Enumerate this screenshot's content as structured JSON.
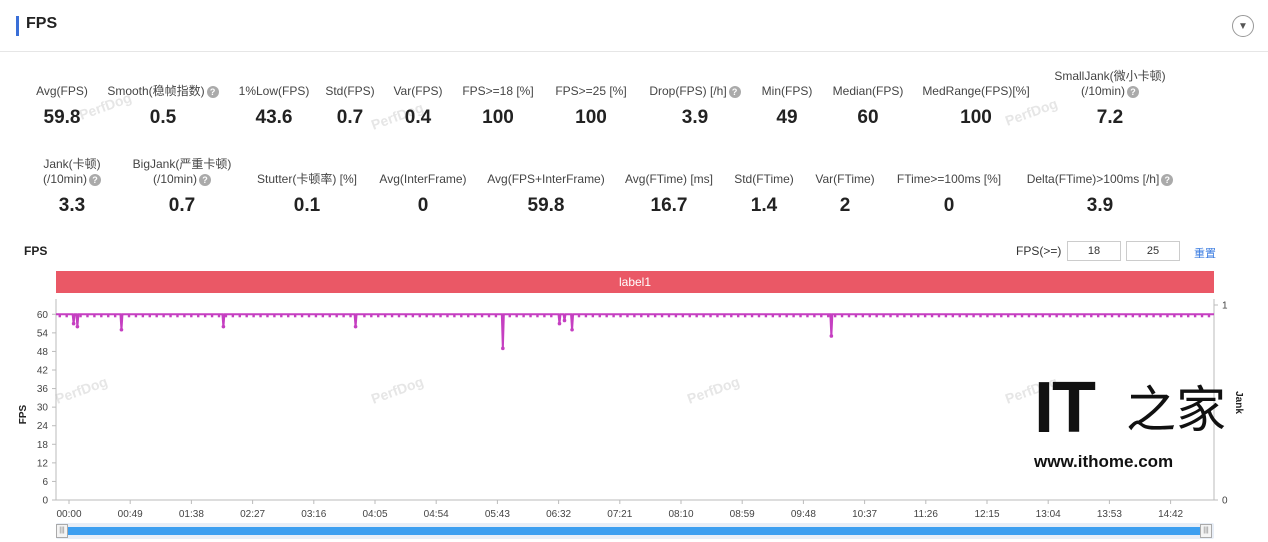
{
  "header": {
    "title": "FPS"
  },
  "stats_row1": [
    {
      "label": "Avg(FPS)",
      "value": "59.8",
      "help": false
    },
    {
      "label": "Smooth(稳帧指数)",
      "value": "0.5",
      "help": true
    },
    {
      "label": "1%Low(FPS)",
      "value": "43.6",
      "help": false
    },
    {
      "label": "Std(FPS)",
      "value": "0.7",
      "help": false
    },
    {
      "label": "Var(FPS)",
      "value": "0.4",
      "help": false
    },
    {
      "label": "FPS>=18 [%]",
      "value": "100",
      "help": false
    },
    {
      "label": "FPS>=25 [%]",
      "value": "100",
      "help": false
    },
    {
      "label": "Drop(FPS) [/h]",
      "value": "3.9",
      "help": true
    },
    {
      "label": "Min(FPS)",
      "value": "49",
      "help": false
    },
    {
      "label": "Median(FPS)",
      "value": "60",
      "help": false
    },
    {
      "label": "MedRange(FPS)[%]",
      "value": "100",
      "help": false
    },
    {
      "label": "SmallJank(微小卡顿)",
      "label2": "(/10min)",
      "value": "7.2",
      "help": true
    }
  ],
  "stats_row2": [
    {
      "label": "Jank(卡顿)",
      "label2": "(/10min)",
      "value": "3.3",
      "help": true
    },
    {
      "label": "BigJank(严重卡顿)",
      "label2": "(/10min)",
      "value": "0.7",
      "help": true
    },
    {
      "label": "Stutter(卡顿率) [%]",
      "value": "0.1",
      "help": false
    },
    {
      "label": "Avg(InterFrame)",
      "value": "0",
      "help": false
    },
    {
      "label": "Avg(FPS+InterFrame)",
      "value": "59.8",
      "help": false
    },
    {
      "label": "Avg(FTime) [ms]",
      "value": "16.7",
      "help": false
    },
    {
      "label": "Std(FTime)",
      "value": "1.4",
      "help": false
    },
    {
      "label": "Var(FTime)",
      "value": "2",
      "help": false
    },
    {
      "label": "FTime>=100ms [%]",
      "value": "0",
      "help": false
    },
    {
      "label": "Delta(FTime)>100ms [/h]",
      "value": "3.9",
      "help": true
    }
  ],
  "help_glyph": "?",
  "watermark_text": "PerfDog",
  "chart_header": {
    "title": "FPS",
    "threshold_label": "FPS(>=)",
    "threshold_1": "18",
    "threshold_2": "25",
    "reset_label": "重置"
  },
  "label_bar": {
    "text": "label1",
    "color": "#ea5866"
  },
  "chart_data": {
    "type": "line",
    "y_title": "FPS",
    "y2_title": "Jank",
    "y_ticks": [
      "0",
      "6",
      "12",
      "18",
      "24",
      "30",
      "36",
      "42",
      "48",
      "54",
      "60"
    ],
    "ylim": [
      0,
      63
    ],
    "y2_ticks": [
      "0",
      "1"
    ],
    "x_ticks": [
      "00:00",
      "00:49",
      "01:38",
      "02:27",
      "03:16",
      "04:05",
      "04:54",
      "05:43",
      "06:32",
      "07:21",
      "08:10",
      "08:59",
      "09:48",
      "10:37",
      "11:26",
      "12:15",
      "13:04",
      "13:53",
      "14:42"
    ],
    "x_range_s": [
      0,
      920
    ],
    "series": [
      {
        "color": "#c53fc1",
        "baseline": 60,
        "dips": [
          {
            "t": 14,
            "v": 57
          },
          {
            "t": 17,
            "v": 56
          },
          {
            "t": 52,
            "v": 55
          },
          {
            "t": 133,
            "v": 56
          },
          {
            "t": 238,
            "v": 56
          },
          {
            "t": 355,
            "v": 49
          },
          {
            "t": 400,
            "v": 57
          },
          {
            "t": 404,
            "v": 58
          },
          {
            "t": 410,
            "v": 55
          },
          {
            "t": 616,
            "v": 53
          }
        ]
      }
    ],
    "grid": false
  },
  "logo": {
    "it": "IT",
    "zh": "之家",
    "url": "www.ithome.com"
  }
}
